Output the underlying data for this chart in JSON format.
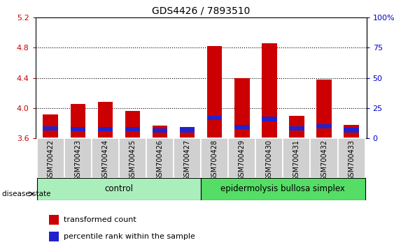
{
  "title": "GDS4426 / 7893510",
  "samples": [
    "GSM700422",
    "GSM700423",
    "GSM700424",
    "GSM700425",
    "GSM700426",
    "GSM700427",
    "GSM700428",
    "GSM700429",
    "GSM700430",
    "GSM700431",
    "GSM700432",
    "GSM700433"
  ],
  "transformed_counts": [
    3.92,
    4.05,
    4.08,
    3.96,
    3.77,
    3.72,
    4.82,
    4.4,
    4.86,
    3.9,
    4.38,
    3.78
  ],
  "percentile_bottoms": [
    3.7,
    3.69,
    3.69,
    3.69,
    3.68,
    3.68,
    3.84,
    3.72,
    3.82,
    3.7,
    3.73,
    3.68
  ],
  "percentile_heights": [
    0.06,
    0.06,
    0.06,
    0.06,
    0.05,
    0.07,
    0.06,
    0.06,
    0.07,
    0.06,
    0.06,
    0.06
  ],
  "ylim_left": [
    3.6,
    5.2
  ],
  "ylim_right": [
    0,
    100
  ],
  "yticks_left": [
    3.6,
    4.0,
    4.4,
    4.8,
    5.2
  ],
  "yticks_right": [
    0,
    25,
    50,
    75,
    100
  ],
  "ytick_labels_right": [
    "0",
    "25",
    "50",
    "75",
    "100%"
  ],
  "bar_color_red": "#cc0000",
  "bar_color_blue": "#2222cc",
  "left_tick_color": "#cc0000",
  "right_tick_color": "#0000cc",
  "control_samples": 6,
  "control_label": "control",
  "disease_label": "epidermolysis bullosa simplex",
  "control_bg": "#aaeebb",
  "disease_bg": "#55dd66",
  "group_label": "disease state",
  "legend_red": "transformed count",
  "legend_blue": "percentile rank within the sample",
  "bar_width": 0.55,
  "base": 3.6,
  "xticklabel_bg": "#d0d0d0",
  "title_fontsize": 10,
  "tick_fontsize": 8,
  "label_fontsize": 8.5
}
